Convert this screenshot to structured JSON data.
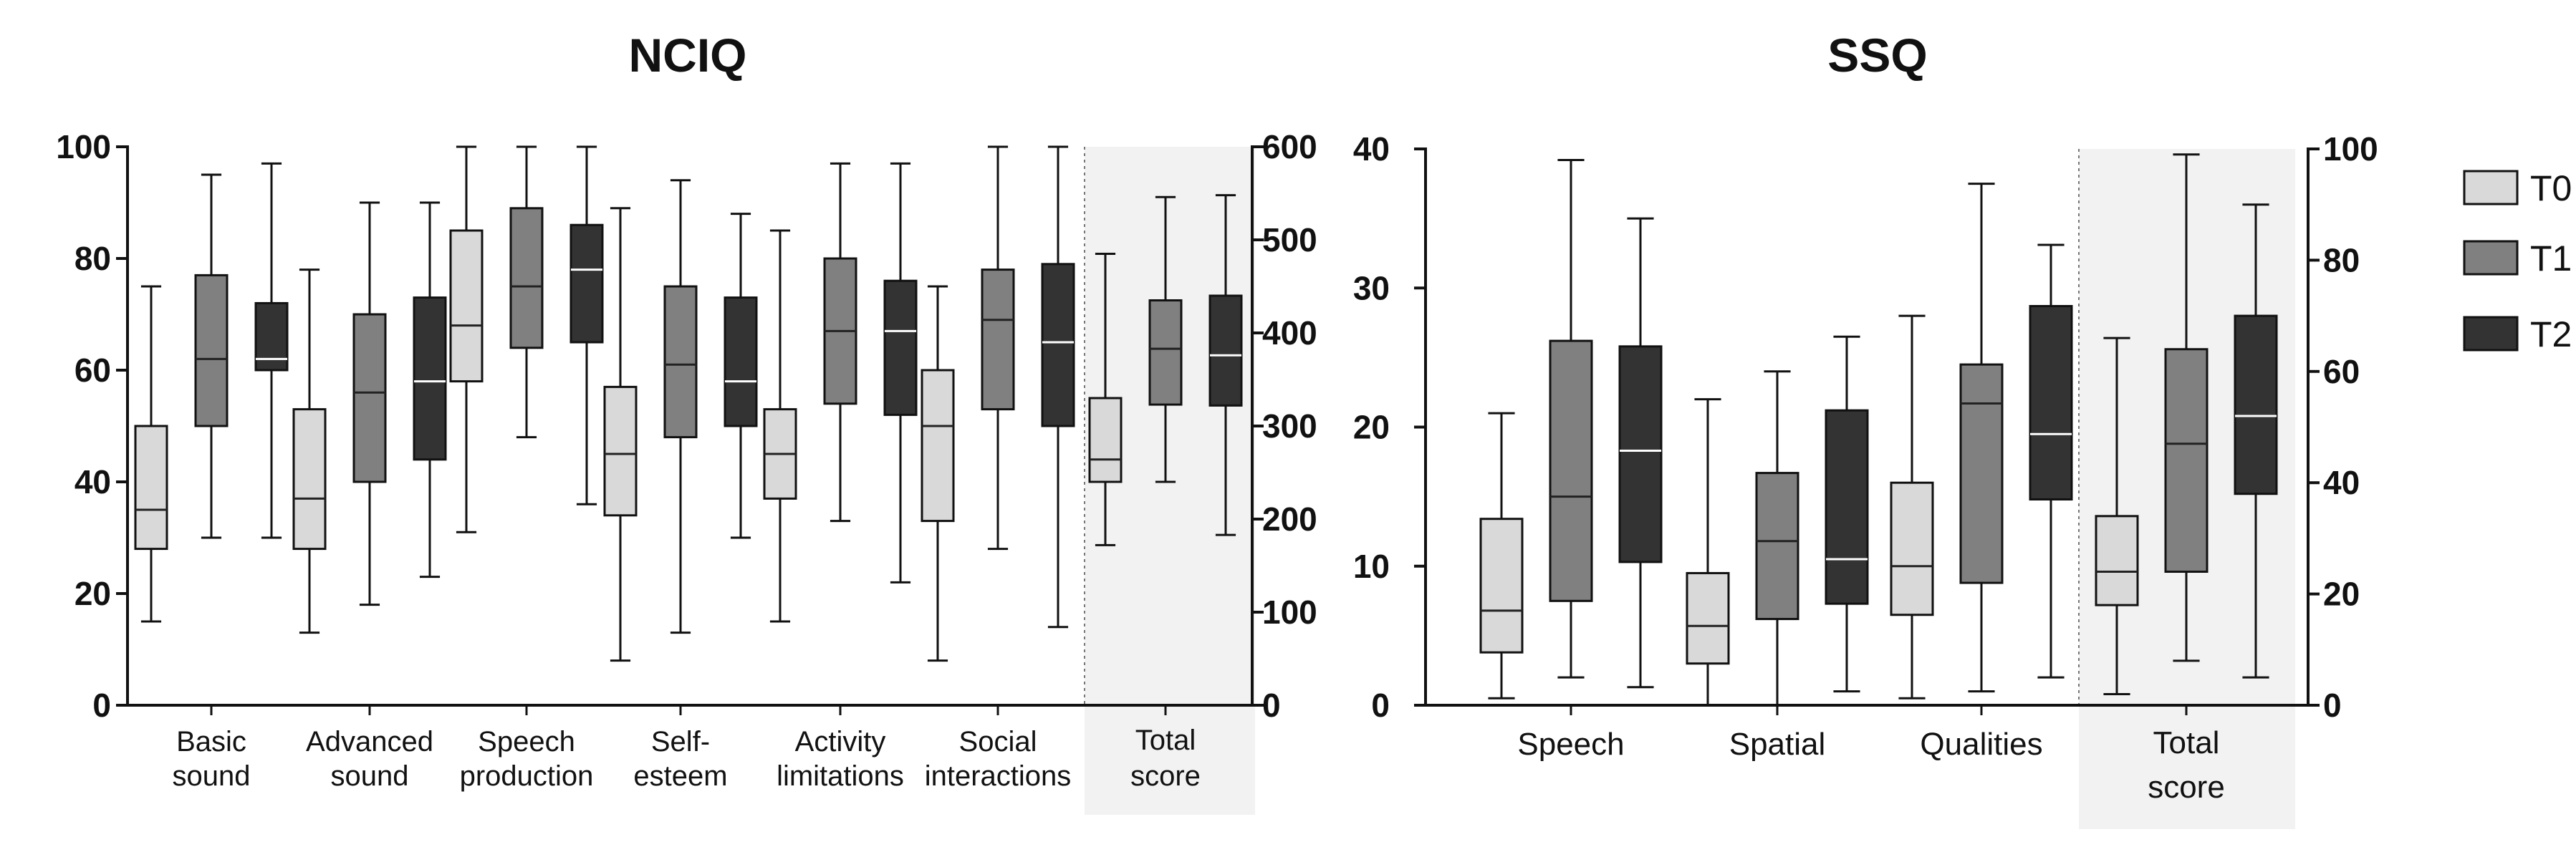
{
  "chart_data": [
    {
      "type": "box",
      "title": "NCIQ",
      "ylim_left": [
        0,
        100
      ],
      "ylim_right": [
        0,
        600
      ],
      "left_ticks": [
        0,
        20,
        40,
        60,
        80,
        100
      ],
      "right_ticks": [
        0,
        100,
        200,
        300,
        400,
        500,
        600
      ],
      "series_names": [
        "T0",
        "T1",
        "T2"
      ],
      "groups": [
        {
          "label_lines": [
            "Basic",
            "sound"
          ],
          "axis": "left",
          "highlight": false,
          "boxes": [
            {
              "series": "T0",
              "min": 15,
              "q1": 28,
              "median": 35,
              "q3": 50,
              "max": 75
            },
            {
              "series": "T1",
              "min": 30,
              "q1": 50,
              "median": 62,
              "q3": 77,
              "max": 95
            },
            {
              "series": "T2",
              "min": 30,
              "q1": 60,
              "median": 62,
              "q3": 72,
              "max": 97
            }
          ]
        },
        {
          "label_lines": [
            "Advanced",
            "sound"
          ],
          "axis": "left",
          "highlight": false,
          "boxes": [
            {
              "series": "T0",
              "min": 13,
              "q1": 28,
              "median": 37,
              "q3": 53,
              "max": 78
            },
            {
              "series": "T1",
              "min": 18,
              "q1": 40,
              "median": 56,
              "q3": 70,
              "max": 90
            },
            {
              "series": "T2",
              "min": 23,
              "q1": 44,
              "median": 58,
              "q3": 73,
              "max": 90
            }
          ]
        },
        {
          "label_lines": [
            "Speech",
            "production"
          ],
          "axis": "left",
          "highlight": false,
          "boxes": [
            {
              "series": "T0",
              "min": 31,
              "q1": 58,
              "median": 68,
              "q3": 85,
              "max": 100
            },
            {
              "series": "T1",
              "min": 48,
              "q1": 64,
              "median": 75,
              "q3": 89,
              "max": 100
            },
            {
              "series": "T2",
              "min": 36,
              "q1": 65,
              "median": 78,
              "q3": 86,
              "max": 100
            }
          ]
        },
        {
          "label_lines": [
            "Self-",
            "esteem"
          ],
          "axis": "left",
          "highlight": false,
          "boxes": [
            {
              "series": "T0",
              "min": 8,
              "q1": 34,
              "median": 45,
              "q3": 57,
              "max": 89
            },
            {
              "series": "T1",
              "min": 13,
              "q1": 48,
              "median": 61,
              "q3": 75,
              "max": 94
            },
            {
              "series": "T2",
              "min": 30,
              "q1": 50,
              "median": 58,
              "q3": 73,
              "max": 88
            }
          ]
        },
        {
          "label_lines": [
            "Activity",
            "limitations"
          ],
          "axis": "left",
          "highlight": false,
          "boxes": [
            {
              "series": "T0",
              "min": 15,
              "q1": 37,
              "median": 45,
              "q3": 53,
              "max": 85
            },
            {
              "series": "T1",
              "min": 33,
              "q1": 54,
              "median": 67,
              "q3": 80,
              "max": 97
            },
            {
              "series": "T2",
              "min": 22,
              "q1": 52,
              "median": 67,
              "q3": 76,
              "max": 97
            }
          ]
        },
        {
          "label_lines": [
            "Social",
            "interactions"
          ],
          "axis": "left",
          "highlight": false,
          "boxes": [
            {
              "series": "T0",
              "min": 8,
              "q1": 33,
              "median": 50,
              "q3": 60,
              "max": 75
            },
            {
              "series": "T1",
              "min": 28,
              "q1": 53,
              "median": 69,
              "q3": 78,
              "max": 100
            },
            {
              "series": "T2",
              "min": 14,
              "q1": 50,
              "median": 65,
              "q3": 79,
              "max": 100
            }
          ]
        },
        {
          "label_lines": [
            "Total",
            "score"
          ],
          "axis": "right",
          "highlight": true,
          "boxes": [
            {
              "series": "T0",
              "min": 172,
              "q1": 240,
              "median": 264,
              "q3": 330,
              "max": 485
            },
            {
              "series": "T1",
              "min": 240,
              "q1": 323,
              "median": 383,
              "q3": 435,
              "max": 546
            },
            {
              "series": "T2",
              "min": 183,
              "q1": 322,
              "median": 376,
              "q3": 440,
              "max": 548
            }
          ]
        }
      ]
    },
    {
      "type": "box",
      "title": "SSQ",
      "ylim_left": [
        0,
        40
      ],
      "ylim_right": [
        0,
        100
      ],
      "left_ticks": [
        0,
        10,
        20,
        30,
        40
      ],
      "right_ticks": [
        0,
        20,
        40,
        60,
        80,
        100
      ],
      "series_names": [
        "T0",
        "T1",
        "T2"
      ],
      "groups": [
        {
          "label_lines": [
            "Speech"
          ],
          "axis": "left",
          "highlight": false,
          "boxes": [
            {
              "series": "T0",
              "min": 0.5,
              "q1": 3.8,
              "median": 6.8,
              "q3": 13.4,
              "max": 21
            },
            {
              "series": "T1",
              "min": 2,
              "q1": 7.5,
              "median": 15,
              "q3": 26.2,
              "max": 39.2
            },
            {
              "series": "T2",
              "min": 1.3,
              "q1": 10.3,
              "median": 18.3,
              "q3": 25.8,
              "max": 35
            }
          ]
        },
        {
          "label_lines": [
            "Spatial"
          ],
          "axis": "left",
          "highlight": false,
          "boxes": [
            {
              "series": "T0",
              "min": 0,
              "q1": 3,
              "median": 5.7,
              "q3": 9.5,
              "max": 22
            },
            {
              "series": "T1",
              "min": 0,
              "q1": 6.2,
              "median": 11.8,
              "q3": 16.7,
              "max": 24
            },
            {
              "series": "T2",
              "min": 1,
              "q1": 7.3,
              "median": 10.5,
              "q3": 21.2,
              "max": 26.5
            }
          ]
        },
        {
          "label_lines": [
            "Qualities"
          ],
          "axis": "left",
          "highlight": false,
          "boxes": [
            {
              "series": "T0",
              "min": 0.5,
              "q1": 6.5,
              "median": 10,
              "q3": 16,
              "max": 28
            },
            {
              "series": "T1",
              "min": 1,
              "q1": 8.8,
              "median": 21.7,
              "q3": 24.5,
              "max": 37.5
            },
            {
              "series": "T2",
              "min": 2,
              "q1": 14.8,
              "median": 19.5,
              "q3": 28.7,
              "max": 33.1
            }
          ]
        },
        {
          "label_lines": [
            "Total",
            "score"
          ],
          "axis": "right",
          "highlight": true,
          "boxes": [
            {
              "series": "T0",
              "min": 2,
              "q1": 18,
              "median": 24,
              "q3": 34,
              "max": 66
            },
            {
              "series": "T1",
              "min": 8,
              "q1": 24,
              "median": 47,
              "q3": 64,
              "max": 99
            },
            {
              "series": "T2",
              "min": 5,
              "q1": 38,
              "median": 52,
              "q3": 70,
              "max": 90
            }
          ]
        }
      ]
    }
  ],
  "legend": {
    "items": [
      {
        "label": "T0",
        "color": "#d9d9d9"
      },
      {
        "label": "T1",
        "color": "#808080"
      },
      {
        "label": "T2",
        "color": "#333333"
      }
    ],
    "placement": "right"
  },
  "colors": {
    "T0": "#d9d9d9",
    "T1": "#808080",
    "T2": "#333333",
    "highlight": "#f2f2f2",
    "ink": "#111111"
  }
}
